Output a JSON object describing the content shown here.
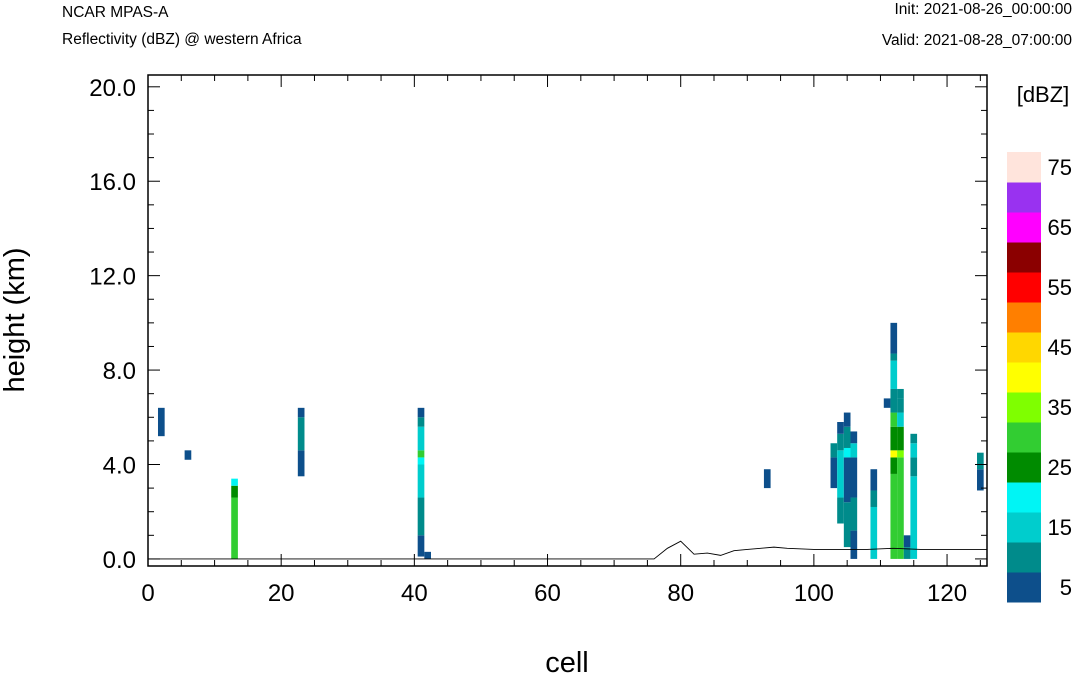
{
  "header": {
    "model": "NCAR MPAS-A",
    "field": "Reflectivity (dBZ) @ western Africa",
    "init": "Init: 2021-08-26_00:00:00",
    "valid": "Valid: 2021-08-28_07:00:00"
  },
  "chart_data": {
    "type": "heatmap",
    "xlabel": "cell",
    "ylabel": "height (km)",
    "xlim": [
      0,
      126
    ],
    "ylim": [
      -0.3,
      20.5
    ],
    "x_ticks": [
      0,
      20,
      40,
      60,
      80,
      100,
      120
    ],
    "y_ticks": [
      0.0,
      4.0,
      8.0,
      12.0,
      16.0,
      20.0
    ],
    "x_tick_labels": [
      "0",
      "20",
      "40",
      "60",
      "80",
      "100",
      "120"
    ],
    "y_tick_labels": [
      "0.0",
      "4.0",
      "8.0",
      "12.0",
      "16.0",
      "20.0"
    ],
    "colorbar": {
      "title": "[dBZ]",
      "bins": [
        {
          "from": 0,
          "to": 5,
          "color": "#0d4f8b"
        },
        {
          "from": 5,
          "to": 10,
          "color": "#008b8b"
        },
        {
          "from": 10,
          "to": 15,
          "color": "#00cdcd"
        },
        {
          "from": 15,
          "to": 20,
          "color": "#00f5f5"
        },
        {
          "from": 20,
          "to": 25,
          "color": "#008b00"
        },
        {
          "from": 25,
          "to": 30,
          "color": "#32cd32"
        },
        {
          "from": 30,
          "to": 35,
          "color": "#7fff00"
        },
        {
          "from": 35,
          "to": 40,
          "color": "#ffff00"
        },
        {
          "from": 40,
          "to": 45,
          "color": "#ffd700"
        },
        {
          "from": 45,
          "to": 50,
          "color": "#ff7f00"
        },
        {
          "from": 50,
          "to": 55,
          "color": "#ff0000"
        },
        {
          "from": 55,
          "to": 60,
          "color": "#8b0000"
        },
        {
          "from": 60,
          "to": 65,
          "color": "#ff00ff"
        },
        {
          "from": 65,
          "to": 70,
          "color": "#9932f0"
        },
        {
          "from": 70,
          "to": 75,
          "color": "#ffe4dc"
        }
      ],
      "labels": [
        "5",
        "15",
        "25",
        "35",
        "45",
        "55",
        "65",
        "75"
      ]
    },
    "cells": [
      {
        "x": 2,
        "y0": 5.2,
        "y1": 6.4,
        "color": "#0d4f8b"
      },
      {
        "x": 6,
        "y0": 4.2,
        "y1": 4.6,
        "color": "#0d4f8b"
      },
      {
        "x": 13,
        "y0": 0.0,
        "y1": 2.6,
        "color": "#32cd32"
      },
      {
        "x": 13,
        "y0": 2.6,
        "y1": 3.1,
        "color": "#008b00"
      },
      {
        "x": 13,
        "y0": 3.1,
        "y1": 3.4,
        "color": "#00f5f5"
      },
      {
        "x": 23,
        "y0": 3.5,
        "y1": 4.6,
        "color": "#0d4f8b"
      },
      {
        "x": 23,
        "y0": 4.6,
        "y1": 6.0,
        "color": "#008b8b"
      },
      {
        "x": 23,
        "y0": 6.0,
        "y1": 6.4,
        "color": "#0d4f8b"
      },
      {
        "x": 41,
        "y0": 0.1,
        "y1": 1.0,
        "color": "#0d4f8b"
      },
      {
        "x": 41,
        "y0": 1.0,
        "y1": 2.6,
        "color": "#008b8b"
      },
      {
        "x": 41,
        "y0": 2.6,
        "y1": 4.0,
        "color": "#00cdcd"
      },
      {
        "x": 41,
        "y0": 4.0,
        "y1": 4.3,
        "color": "#00f5f5"
      },
      {
        "x": 41,
        "y0": 4.3,
        "y1": 4.6,
        "color": "#32cd32"
      },
      {
        "x": 41,
        "y0": 4.6,
        "y1": 5.6,
        "color": "#00cdcd"
      },
      {
        "x": 41,
        "y0": 5.6,
        "y1": 6.0,
        "color": "#008b8b"
      },
      {
        "x": 41,
        "y0": 6.0,
        "y1": 6.4,
        "color": "#0d4f8b"
      },
      {
        "x": 42,
        "y0": 0.0,
        "y1": 0.3,
        "color": "#0d4f8b"
      },
      {
        "x": 93,
        "y0": 3.0,
        "y1": 3.8,
        "color": "#0d4f8b"
      },
      {
        "x": 103,
        "y0": 3.0,
        "y1": 4.3,
        "color": "#0d4f8b"
      },
      {
        "x": 103,
        "y0": 4.3,
        "y1": 4.9,
        "color": "#008b8b"
      },
      {
        "x": 104,
        "y0": 1.5,
        "y1": 2.6,
        "color": "#008b8b"
      },
      {
        "x": 104,
        "y0": 2.6,
        "y1": 4.6,
        "color": "#00cdcd"
      },
      {
        "x": 104,
        "y0": 4.6,
        "y1": 5.3,
        "color": "#008b8b"
      },
      {
        "x": 104,
        "y0": 5.3,
        "y1": 5.8,
        "color": "#0d4f8b"
      },
      {
        "x": 105,
        "y0": 0.5,
        "y1": 2.4,
        "color": "#008b8b"
      },
      {
        "x": 105,
        "y0": 2.4,
        "y1": 4.3,
        "color": "#0d4f8b"
      },
      {
        "x": 105,
        "y0": 4.3,
        "y1": 4.7,
        "color": "#00f5f5"
      },
      {
        "x": 105,
        "y0": 4.7,
        "y1": 5.6,
        "color": "#008b8b"
      },
      {
        "x": 105,
        "y0": 5.6,
        "y1": 6.2,
        "color": "#0d4f8b"
      },
      {
        "x": 106,
        "y0": 0.0,
        "y1": 1.2,
        "color": "#0d4f8b"
      },
      {
        "x": 106,
        "y0": 1.2,
        "y1": 2.6,
        "color": "#008b8b"
      },
      {
        "x": 106,
        "y0": 2.6,
        "y1": 4.3,
        "color": "#0d4f8b"
      },
      {
        "x": 106,
        "y0": 4.3,
        "y1": 4.9,
        "color": "#00cdcd"
      },
      {
        "x": 106,
        "y0": 4.9,
        "y1": 5.4,
        "color": "#0d4f8b"
      },
      {
        "x": 109,
        "y0": 0.0,
        "y1": 2.2,
        "color": "#00cdcd"
      },
      {
        "x": 109,
        "y0": 2.2,
        "y1": 2.9,
        "color": "#008b8b"
      },
      {
        "x": 109,
        "y0": 2.9,
        "y1": 3.8,
        "color": "#0d4f8b"
      },
      {
        "x": 111,
        "y0": 6.4,
        "y1": 6.8,
        "color": "#0d4f8b"
      },
      {
        "x": 112,
        "y0": 0.0,
        "y1": 3.6,
        "color": "#32cd32"
      },
      {
        "x": 112,
        "y0": 3.6,
        "y1": 4.3,
        "color": "#008b00"
      },
      {
        "x": 112,
        "y0": 4.3,
        "y1": 4.6,
        "color": "#ffff00"
      },
      {
        "x": 112,
        "y0": 4.6,
        "y1": 5.6,
        "color": "#008b00"
      },
      {
        "x": 112,
        "y0": 5.6,
        "y1": 6.2,
        "color": "#32cd32"
      },
      {
        "x": 112,
        "y0": 6.2,
        "y1": 7.2,
        "color": "#008b8b"
      },
      {
        "x": 112,
        "y0": 7.2,
        "y1": 8.4,
        "color": "#00cdcd"
      },
      {
        "x": 112,
        "y0": 8.4,
        "y1": 8.7,
        "color": "#008b8b"
      },
      {
        "x": 112,
        "y0": 8.7,
        "y1": 10.0,
        "color": "#0d4f8b"
      },
      {
        "x": 113,
        "y0": 0.0,
        "y1": 4.3,
        "color": "#32cd32"
      },
      {
        "x": 113,
        "y0": 4.3,
        "y1": 4.6,
        "color": "#7fff00"
      },
      {
        "x": 113,
        "y0": 4.6,
        "y1": 5.6,
        "color": "#008b00"
      },
      {
        "x": 113,
        "y0": 5.6,
        "y1": 6.2,
        "color": "#00cdcd"
      },
      {
        "x": 113,
        "y0": 6.2,
        "y1": 6.8,
        "color": "#008b8b"
      },
      {
        "x": 113,
        "y0": 6.8,
        "y1": 7.2,
        "color": "#008b8b"
      },
      {
        "x": 114,
        "y0": 0.5,
        "y1": 1.0,
        "color": "#0d4f8b"
      },
      {
        "x": 114,
        "y0": 0.0,
        "y1": 0.5,
        "color": "#008b8b"
      },
      {
        "x": 115,
        "y0": 0.0,
        "y1": 3.5,
        "color": "#00cdcd"
      },
      {
        "x": 115,
        "y0": 3.5,
        "y1": 4.3,
        "color": "#008b8b"
      },
      {
        "x": 115,
        "y0": 4.3,
        "y1": 4.9,
        "color": "#00cdcd"
      },
      {
        "x": 115,
        "y0": 4.9,
        "y1": 5.3,
        "color": "#008b8b"
      },
      {
        "x": 125,
        "y0": 2.9,
        "y1": 3.8,
        "color": "#0d4f8b"
      },
      {
        "x": 125,
        "y0": 3.8,
        "y1": 4.5,
        "color": "#008b8b"
      }
    ],
    "terrain": [
      [
        0,
        0.0
      ],
      [
        76,
        0.0
      ],
      [
        78,
        0.45
      ],
      [
        80,
        0.75
      ],
      [
        82,
        0.2
      ],
      [
        84,
        0.25
      ],
      [
        86,
        0.15
      ],
      [
        88,
        0.35
      ],
      [
        90,
        0.4
      ],
      [
        92,
        0.45
      ],
      [
        94,
        0.5
      ],
      [
        96,
        0.45
      ],
      [
        100,
        0.4
      ],
      [
        104,
        0.4
      ],
      [
        108,
        0.4
      ],
      [
        112,
        0.45
      ],
      [
        116,
        0.4
      ],
      [
        120,
        0.4
      ],
      [
        126,
        0.4
      ]
    ]
  }
}
